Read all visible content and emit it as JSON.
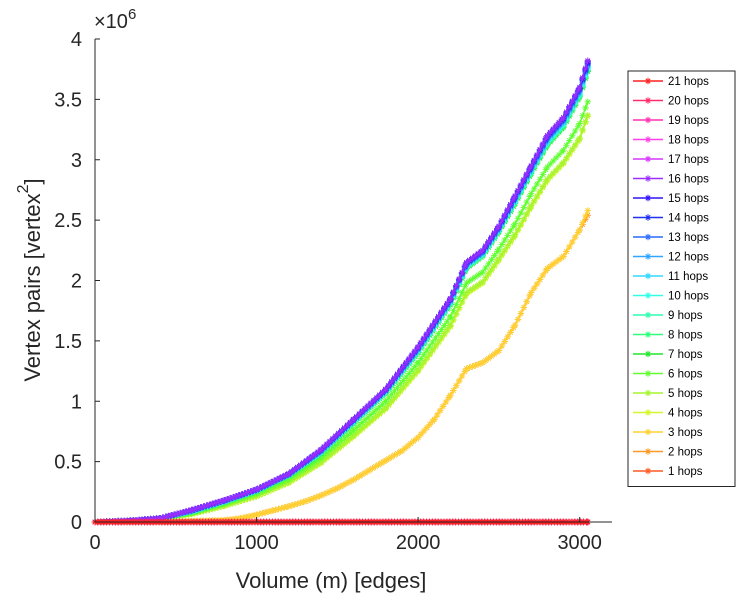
{
  "chart_data": {
    "type": "line",
    "xlabel": "Volume (m) [edges]",
    "ylabel_main": "Vertex pairs [vertex",
    "ylabel_sup": "2",
    "ylabel_close": "]",
    "y_multiplier": {
      "base": "×10",
      "exp": "6"
    },
    "xlim": [
      0,
      3200
    ],
    "ylim": [
      0,
      4000000
    ],
    "xticks": [
      0,
      1000,
      2000,
      3000
    ],
    "xtick_labels": [
      "0",
      "1000",
      "2000",
      "3000"
    ],
    "yticks": [
      0,
      500000,
      1000000,
      1500000,
      2000000,
      2500000,
      3000000,
      3500000,
      4000000
    ],
    "ytick_labels": [
      "0",
      "0.5",
      "1",
      "1.5",
      "2",
      "2.5",
      "3",
      "3.5",
      "4"
    ],
    "grid": false,
    "legend_position": "right",
    "marker": "asterisk",
    "series": [
      {
        "name": "21 hops",
        "color": "#ff2020",
        "x": [
          0,
          3050
        ],
        "y": [
          0,
          0
        ]
      },
      {
        "name": "20 hops",
        "color": "#ff2a6a",
        "x": [
          0,
          3050
        ],
        "y": [
          0,
          0
        ]
      },
      {
        "name": "19 hops",
        "color": "#ff30b4",
        "x": [
          0,
          3050
        ],
        "y": [
          0,
          0
        ]
      },
      {
        "name": "18 hops",
        "color": "#ff40e8",
        "x": [
          0,
          3050
        ],
        "y": [
          0,
          0
        ]
      },
      {
        "name": "17 hops",
        "color": "#d636ff",
        "x": [
          0,
          3050
        ],
        "y": [
          0,
          0
        ]
      },
      {
        "name": "16 hops",
        "color": "#9a2eff",
        "x": [
          0,
          200,
          400,
          600,
          800,
          1000,
          1200,
          1400,
          1600,
          1800,
          2000,
          2200,
          2300,
          2400,
          2500,
          2600,
          2700,
          2800,
          2900,
          3000,
          3050
        ],
        "y": [
          0,
          10000,
          30000,
          100000,
          180000,
          270000,
          400000,
          600000,
          850000,
          1100000,
          1450000,
          1850000,
          2150000,
          2250000,
          2450000,
          2700000,
          2950000,
          3200000,
          3350000,
          3600000,
          3820000
        ]
      },
      {
        "name": "15 hops",
        "color": "#3010ff",
        "x": [
          0,
          200,
          400,
          600,
          800,
          1000,
          1200,
          1400,
          1600,
          1800,
          2000,
          2200,
          2300,
          2400,
          2500,
          2600,
          2700,
          2800,
          2900,
          3000,
          3050
        ],
        "y": [
          0,
          10000,
          30000,
          100000,
          180000,
          270000,
          400000,
          600000,
          850000,
          1100000,
          1450000,
          1850000,
          2150000,
          2250000,
          2450000,
          2700000,
          2950000,
          3200000,
          3350000,
          3600000,
          3810000
        ]
      },
      {
        "name": "14 hops",
        "color": "#2030f0",
        "x": [
          0,
          200,
          400,
          600,
          800,
          1000,
          1200,
          1400,
          1600,
          1800,
          2000,
          2200,
          2300,
          2400,
          2500,
          2600,
          2700,
          2800,
          2900,
          3000,
          3050
        ],
        "y": [
          0,
          10000,
          30000,
          98000,
          178000,
          268000,
          398000,
          596000,
          846000,
          1096000,
          1444000,
          1844000,
          2144000,
          2244000,
          2444000,
          2692000,
          2942000,
          3190000,
          3340000,
          3590000,
          3800000
        ]
      },
      {
        "name": "13 hops",
        "color": "#2a6aff",
        "x": [
          0,
          200,
          400,
          600,
          800,
          1000,
          1200,
          1400,
          1600,
          1800,
          2000,
          2200,
          2300,
          2400,
          2500,
          2600,
          2700,
          2800,
          2900,
          3000,
          3050
        ],
        "y": [
          0,
          10000,
          30000,
          96000,
          176000,
          266000,
          396000,
          592000,
          842000,
          1092000,
          1438000,
          1838000,
          2138000,
          2238000,
          2438000,
          2684000,
          2934000,
          3180000,
          3330000,
          3580000,
          3790000
        ]
      },
      {
        "name": "12 hops",
        "color": "#2ea6ff",
        "x": [
          0,
          200,
          400,
          600,
          800,
          1000,
          1200,
          1400,
          1600,
          1800,
          2000,
          2200,
          2300,
          2400,
          2500,
          2600,
          2700,
          2800,
          2900,
          3000,
          3050
        ],
        "y": [
          0,
          10000,
          30000,
          94000,
          174000,
          264000,
          394000,
          588000,
          838000,
          1088000,
          1432000,
          1832000,
          2132000,
          2232000,
          2432000,
          2676000,
          2926000,
          3170000,
          3320000,
          3570000,
          3780000
        ]
      },
      {
        "name": "11 hops",
        "color": "#30d8ff",
        "x": [
          0,
          200,
          400,
          600,
          800,
          1000,
          1200,
          1400,
          1600,
          1800,
          2000,
          2200,
          2300,
          2400,
          2500,
          2600,
          2700,
          2800,
          2900,
          3000,
          3050
        ],
        "y": [
          0,
          10000,
          30000,
          92000,
          172000,
          262000,
          392000,
          584000,
          834000,
          1084000,
          1426000,
          1826000,
          2126000,
          2226000,
          2426000,
          2668000,
          2918000,
          3160000,
          3310000,
          3560000,
          3770000
        ]
      },
      {
        "name": "10 hops",
        "color": "#30ffe6",
        "x": [
          0,
          200,
          400,
          600,
          800,
          1000,
          1200,
          1400,
          1600,
          1800,
          2000,
          2200,
          2300,
          2400,
          2500,
          2600,
          2700,
          2800,
          2900,
          3000,
          3050
        ],
        "y": [
          0,
          10000,
          30000,
          90000,
          170000,
          260000,
          390000,
          580000,
          830000,
          1080000,
          1420000,
          1820000,
          2120000,
          2220000,
          2420000,
          2660000,
          2910000,
          3150000,
          3300000,
          3550000,
          3760000
        ]
      },
      {
        "name": "9 hops",
        "color": "#2effb0",
        "x": [
          0,
          200,
          400,
          600,
          800,
          1000,
          1200,
          1400,
          1600,
          1800,
          2000,
          2200,
          2300,
          2400,
          2500,
          2600,
          2700,
          2800,
          2900,
          3000,
          3050
        ],
        "y": [
          0,
          10000,
          30000,
          88000,
          168000,
          258000,
          388000,
          576000,
          826000,
          1076000,
          1414000,
          1814000,
          2114000,
          2214000,
          2414000,
          2652000,
          2902000,
          3140000,
          3290000,
          3540000,
          3750000
        ]
      },
      {
        "name": "8 hops",
        "color": "#2eff7a",
        "x": [
          0,
          200,
          400,
          600,
          800,
          1000,
          1200,
          1400,
          1600,
          1800,
          2000,
          2200,
          2300,
          2400,
          2500,
          2600,
          2700,
          2800,
          2900,
          3000,
          3050
        ],
        "y": [
          0,
          10000,
          30000,
          86000,
          166000,
          256000,
          386000,
          572000,
          822000,
          1072000,
          1408000,
          1808000,
          2108000,
          2208000,
          2408000,
          2644000,
          2894000,
          3130000,
          3280000,
          3530000,
          3740000
        ]
      },
      {
        "name": "7 hops",
        "color": "#22e62a",
        "x": [
          0,
          200,
          400,
          600,
          800,
          1000,
          1200,
          1400,
          1600,
          1800,
          2000,
          2200,
          2300,
          2400,
          2500,
          2600,
          2700,
          2800,
          2900,
          3000,
          3050
        ],
        "y": [
          0,
          10000,
          30000,
          84000,
          164000,
          254000,
          384000,
          568000,
          818000,
          1068000,
          1402000,
          1802000,
          2102000,
          2202000,
          2402000,
          2636000,
          2886000,
          3120000,
          3270000,
          3520000,
          3730000
        ]
      },
      {
        "name": "6 hops",
        "color": "#60ff30",
        "x": [
          0,
          200,
          400,
          600,
          800,
          1000,
          1200,
          1400,
          1600,
          1800,
          2000,
          2200,
          2300,
          2400,
          2500,
          2600,
          2700,
          2800,
          2900,
          3000,
          3050
        ],
        "y": [
          0,
          9000,
          27000,
          75000,
          150000,
          235000,
          355000,
          530000,
          760000,
          1000000,
          1320000,
          1700000,
          1980000,
          2070000,
          2260000,
          2470000,
          2720000,
          2940000,
          3080000,
          3300000,
          3480000
        ]
      },
      {
        "name": "5 hops",
        "color": "#a6f52e",
        "x": [
          0,
          200,
          400,
          600,
          800,
          1000,
          1200,
          1400,
          1600,
          1800,
          2000,
          2200,
          2300,
          2400,
          2500,
          2600,
          2700,
          2800,
          2900,
          3000,
          3050
        ],
        "y": [
          0,
          8000,
          24000,
          68000,
          135000,
          215000,
          330000,
          495000,
          715000,
          945000,
          1260000,
          1630000,
          1900000,
          1990000,
          2180000,
          2380000,
          2620000,
          2840000,
          2980000,
          3180000,
          3370000
        ]
      },
      {
        "name": "4 hops",
        "color": "#d6f52a",
        "x": [
          0,
          200,
          400,
          600,
          800,
          1000,
          1200,
          1400,
          1600,
          1800,
          2000,
          2200,
          2300,
          2400,
          2500,
          2600,
          2700,
          2800,
          2900,
          3000,
          3050
        ],
        "y": [
          0,
          8000,
          23000,
          66000,
          132000,
          212000,
          325000,
          490000,
          708000,
          938000,
          1250000,
          1620000,
          1890000,
          1980000,
          2170000,
          2370000,
          2610000,
          2830000,
          2970000,
          3170000,
          3360000
        ]
      },
      {
        "name": "3 hops",
        "color": "#ffd030",
        "x": [
          0,
          200,
          400,
          600,
          800,
          900,
          1000,
          1100,
          1200,
          1300,
          1400,
          1500,
          1600,
          1700,
          1800,
          1900,
          2000,
          2100,
          2200,
          2300,
          2400,
          2500,
          2600,
          2700,
          2800,
          2900,
          3000,
          3050
        ],
        "y": [
          0,
          1000,
          3000,
          8000,
          15000,
          30000,
          60000,
          95000,
          130000,
          170000,
          220000,
          280000,
          350000,
          430000,
          510000,
          590000,
          700000,
          850000,
          1050000,
          1270000,
          1320000,
          1420000,
          1630000,
          1900000,
          2100000,
          2200000,
          2420000,
          2580000
        ]
      },
      {
        "name": "2 hops",
        "color": "#ff9a28",
        "x": [
          0,
          200,
          400,
          600,
          800,
          900,
          1000,
          1100,
          1200,
          1300,
          1400,
          1500,
          1600,
          1700,
          1800,
          1900,
          2000,
          2100,
          2200,
          2300,
          2400,
          2500,
          2600,
          2700,
          2800,
          2900,
          3000,
          3050
        ],
        "y": [
          0,
          1000,
          3000,
          8000,
          15000,
          30000,
          60000,
          95000,
          130000,
          170000,
          220000,
          280000,
          350000,
          430000,
          510000,
          590000,
          700000,
          850000,
          1050000,
          1270000,
          1320000,
          1420000,
          1630000,
          1900000,
          2100000,
          2200000,
          2420000,
          2540000
        ]
      },
      {
        "name": "1 hops",
        "color": "#ff5a22",
        "x": [
          0,
          3050
        ],
        "y": [
          0,
          0
        ]
      }
    ]
  }
}
